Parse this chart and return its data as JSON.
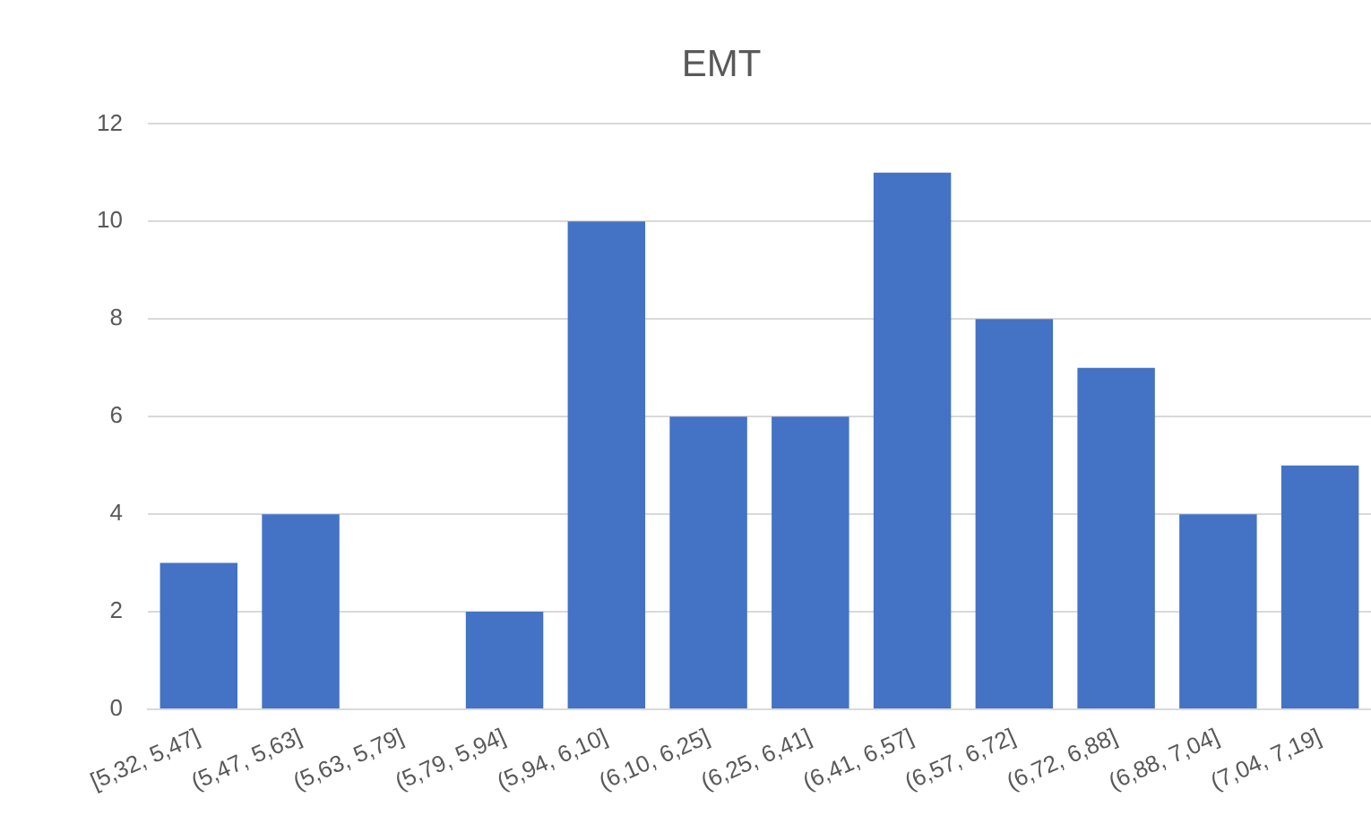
{
  "chart_data": {
    "type": "bar",
    "title": "EMT",
    "categories": [
      "[5,32, 5,47]",
      "(5,47, 5,63]",
      "(5,63, 5,79]",
      "(5,79, 5,94]",
      "(5,94, 6,10]",
      "(6,10, 6,25]",
      "(6,25, 6,41]",
      "(6,41, 6,57]",
      "(6,57, 6,72]",
      "(6,72, 6,88]",
      "(6,88, 7,04]",
      "(7,04, 7,19]"
    ],
    "values": [
      3,
      4,
      0,
      2,
      10,
      6,
      6,
      11,
      8,
      7,
      4,
      5
    ],
    "color": "#4472c4",
    "ylim": [
      0,
      12
    ],
    "yticks": [
      0,
      2,
      4,
      6,
      8,
      10,
      12
    ],
    "grid": "y",
    "legend": false
  }
}
